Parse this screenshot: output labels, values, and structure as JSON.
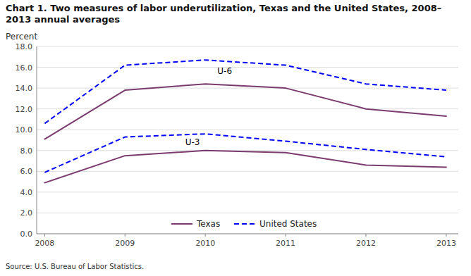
{
  "chart_data": {
    "type": "line",
    "title": "Chart 1. Two measures of labor underutilization, Texas and the United States, 2008–2013  annual averages",
    "y_label": "Percent",
    "source": "Source: U.S. Bureau of Labor Statistics.",
    "x": [
      2008,
      2009,
      2010,
      2011,
      2012,
      2013
    ],
    "series": [
      {
        "name": "Texas",
        "color": "#7B3B6E",
        "line_style": "solid",
        "values": [
          4.9,
          7.5,
          8.0,
          7.8,
          6.6,
          6.4
        ]
      },
      {
        "name": "Texas",
        "color": "#7B3B6E",
        "line_style": "solid",
        "values": [
          9.1,
          13.8,
          14.4,
          14.0,
          12.0,
          11.3
        ]
      },
      {
        "name": "United States",
        "color": "#0000FF",
        "line_style": "dashed",
        "values": [
          5.9,
          9.3,
          9.6,
          8.9,
          8.1,
          7.4
        ]
      },
      {
        "name": "United States",
        "color": "#0000FF",
        "line_style": "dashed",
        "values": [
          10.6,
          16.2,
          16.7,
          16.2,
          14.4,
          13.8
        ]
      }
    ],
    "annotations": [
      {
        "text": "U-6",
        "x": 2010.15,
        "y": 15.35
      },
      {
        "text": "U-3",
        "x": 2009.75,
        "y": 8.55
      }
    ],
    "xlim": [
      2007.9,
      2013.15
    ],
    "xticks": [
      2008,
      2009,
      2010,
      2011,
      2012,
      2013
    ],
    "ylim": [
      0.0,
      18.0
    ],
    "yticks": [
      {
        "value": 0.0,
        "label": "0.0"
      },
      {
        "value": 2.0,
        "label": "2.0"
      },
      {
        "value": 4.0,
        "label": "4.0"
      },
      {
        "value": 6.0,
        "label": "6.0"
      },
      {
        "value": 8.0,
        "label": "8.0"
      },
      {
        "value": 10.0,
        "label": "10.0"
      },
      {
        "value": 12.0,
        "label": "12.0"
      },
      {
        "value": 14.0,
        "label": "14.0"
      },
      {
        "value": 16.0,
        "label": "16.0"
      },
      {
        "value": 18.0,
        "label": "18.0"
      }
    ],
    "grid": true,
    "legend": "bottom"
  }
}
